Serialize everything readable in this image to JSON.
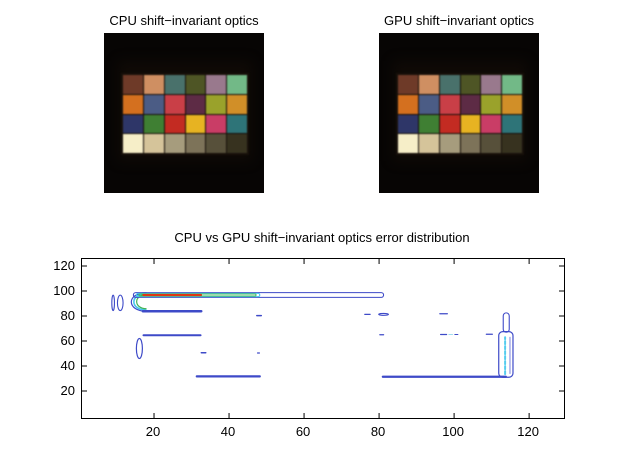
{
  "panels": [
    {
      "title": "CPU shift−invariant optics"
    },
    {
      "title": "GPU shift−invariant optics"
    }
  ],
  "color_checker": {
    "rows": 4,
    "cols": 6,
    "patches": [
      "#6e3a28",
      "#cf8f62",
      "#49716b",
      "#4e5525",
      "#99798d",
      "#72b987",
      "#d4701f",
      "#4b5c85",
      "#c93f47",
      "#5d2b45",
      "#9aa22b",
      "#d18f28",
      "#2e3668",
      "#3f7f33",
      "#c32b22",
      "#e7b322",
      "#c93d66",
      "#2e7478",
      "#f6eec8",
      "#d5c49a",
      "#a69c7d",
      "#7d7359",
      "#57503a",
      "#37321f"
    ],
    "background": "#070504"
  },
  "chart_data": {
    "type": "contour",
    "title": "CPU vs GPU shift−invariant optics error distribution",
    "xlabel": "",
    "ylabel": "",
    "xlim": [
      0.8,
      129.3
    ],
    "ylim": [
      -1.6,
      125.6
    ],
    "xticks": [
      20,
      40,
      60,
      80,
      100,
      120
    ],
    "yticks": [
      20,
      40,
      60,
      80,
      100,
      120
    ],
    "grid": false,
    "legend": null,
    "level_colors": {
      "low": "#3e4ac8",
      "mid": "#46c6ec",
      "high": "#42b454",
      "peak": "#e23812"
    },
    "features": [
      {
        "t": "ell",
        "cx": 9.1,
        "cy": 90.5,
        "rx": 0.35,
        "ry": 6.2,
        "c": "#3e4ac8",
        "w": 1.1
      },
      {
        "t": "ell",
        "cx": 11.0,
        "cy": 90.5,
        "rx": 0.75,
        "ry": 6.2,
        "c": "#3e4ac8",
        "w": 1.1
      },
      {
        "t": "c",
        "xr": 18,
        "bx": 12.6,
        "y1": 98.6,
        "y2": 83.8,
        "c": "#3e4ac8",
        "w": 1.2
      },
      {
        "t": "c",
        "xr": 18,
        "bx": 13.5,
        "y1": 97.9,
        "y2": 84.8,
        "c": "#46c6ec",
        "w": 1.6
      },
      {
        "t": "c",
        "xr": 18,
        "bx": 14.5,
        "y1": 97.2,
        "y2": 85.8,
        "c": "#42b454",
        "w": 1.2
      },
      {
        "t": "band",
        "x1": 14.5,
        "x2": 81.2,
        "y1": 94.9,
        "y2": 98.7,
        "c": "#3e4ac8",
        "w": 1.1
      },
      {
        "t": "band",
        "x1": 15.3,
        "x2": 48.2,
        "y1": 95.5,
        "y2": 98.1,
        "c": "#46c6ec",
        "w": 1.1
      },
      {
        "t": "band",
        "x1": 16.0,
        "x2": 47.2,
        "y1": 96.0,
        "y2": 97.6,
        "c": "#42b454",
        "w": 1.0
      },
      {
        "t": "line",
        "x1": 17.2,
        "y1": 96.8,
        "x2": 32.5,
        "y2": 96.8,
        "c": "#e23812",
        "w": 2.2
      },
      {
        "t": "line",
        "x1": 17.0,
        "y1": 83.8,
        "x2": 32.6,
        "y2": 83.8,
        "c": "#3e4ac8",
        "w": 2.4
      },
      {
        "t": "line",
        "x1": 47.4,
        "y1": 80.3,
        "x2": 48.6,
        "y2": 80.3,
        "c": "#3e4ac8",
        "w": 1.4
      },
      {
        "t": "line",
        "x1": 17.2,
        "y1": 64.6,
        "x2": 32.4,
        "y2": 64.6,
        "c": "#3e4ac8",
        "w": 2.0
      },
      {
        "t": "ell",
        "cx": 16.1,
        "cy": 54.0,
        "rx": 0.8,
        "ry": 8.0,
        "c": "#3e4ac8",
        "w": 1.2
      },
      {
        "t": "line",
        "x1": 32.6,
        "y1": 50.6,
        "x2": 33.8,
        "y2": 50.6,
        "c": "#3e4ac8",
        "w": 1.4
      },
      {
        "t": "line",
        "x1": 47.6,
        "y1": 50.4,
        "x2": 48.1,
        "y2": 50.4,
        "c": "#3e4ac8",
        "w": 1.2
      },
      {
        "t": "line",
        "x1": 31.4,
        "y1": 31.7,
        "x2": 48.2,
        "y2": 31.7,
        "c": "#3e4ac8",
        "w": 2.2
      },
      {
        "t": "line",
        "x1": 76.2,
        "y1": 81.3,
        "x2": 77.6,
        "y2": 81.3,
        "c": "#3e4ac8",
        "w": 1.3
      },
      {
        "t": "ell",
        "cx": 81.2,
        "cy": 81.3,
        "rx": 1.3,
        "ry": 0.75,
        "c": "#3e4ac8",
        "w": 1.1
      },
      {
        "t": "line",
        "x1": 96.2,
        "y1": 81.8,
        "x2": 98.2,
        "y2": 81.8,
        "c": "#3e4ac8",
        "w": 1.2
      },
      {
        "t": "line",
        "x1": 80.2,
        "y1": 65.0,
        "x2": 81.2,
        "y2": 65.0,
        "c": "#3e4ac8",
        "w": 1.2
      },
      {
        "t": "line",
        "x1": 96.4,
        "y1": 65.2,
        "x2": 98.0,
        "y2": 65.2,
        "c": "#3e4ac8",
        "w": 1.2
      },
      {
        "t": "line",
        "x1": 98.6,
        "y1": 65.2,
        "x2": 99.6,
        "y2": 65.2,
        "c": "#9fdcee",
        "w": 1.0
      },
      {
        "t": "line",
        "x1": 100.2,
        "y1": 65.2,
        "x2": 101.0,
        "y2": 65.2,
        "c": "#3e4ac8",
        "w": 1.1
      },
      {
        "t": "line",
        "x1": 108.6,
        "y1": 65.4,
        "x2": 110.2,
        "y2": 65.4,
        "c": "#3e4ac8",
        "w": 1.2
      },
      {
        "t": "band",
        "x1": 113.1,
        "x2": 114.7,
        "y1": 67.0,
        "y2": 82.5,
        "c": "#3e4ac8",
        "w": 1.1
      },
      {
        "t": "band",
        "x1": 111.9,
        "x2": 115.7,
        "y1": 31.0,
        "y2": 67.5,
        "c": "#3e4ac8",
        "w": 1.2,
        "r": 4
      },
      {
        "t": "line",
        "x1": 113.6,
        "y1": 33.5,
        "x2": 113.6,
        "y2": 63.0,
        "c": "#55ccee",
        "w": 2.0,
        "dash": "3,2",
        "vert": true
      },
      {
        "t": "line",
        "x1": 114.9,
        "y1": 34.0,
        "x2": 114.9,
        "y2": 63.0,
        "c": "#6a74d8",
        "w": 0.9,
        "vert": true
      },
      {
        "t": "line",
        "x1": 81.0,
        "y1": 31.4,
        "x2": 113.8,
        "y2": 31.4,
        "c": "#3e4ac8",
        "w": 2.2
      }
    ]
  }
}
